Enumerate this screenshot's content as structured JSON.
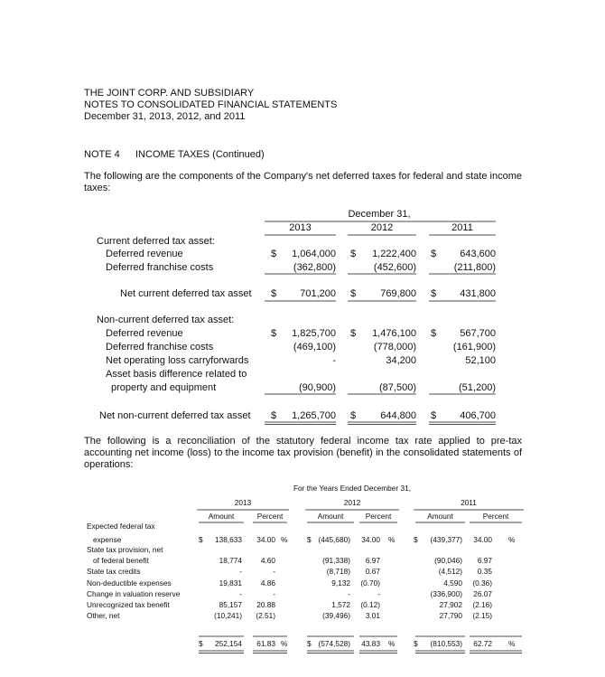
{
  "header": {
    "lines": [
      "THE JOINT CORP. AND SUBSIDIARY",
      "NOTES TO CONSOLIDATED FINANCIAL STATEMENTS",
      "December 31, 2013, 2012, and 2011"
    ]
  },
  "note": {
    "number": "NOTE 4",
    "title": "INCOME TAXES (Continued)"
  },
  "paragraphs": [
    "The following are the components of the Company's net deferred taxes for federal and state income taxes:",
    "The following is a reconciliation of the statutory federal income tax rate applied to pre-tax accounting net income (loss) to the income tax provision (benefit) in the consolidated statements of operations:"
  ],
  "table1": {
    "group_header": "December 31,",
    "years": [
      "2013",
      "2012",
      "2011"
    ],
    "rows": [
      {
        "label": "Current deferred tax asset:"
      },
      {
        "label": "Deferred revenue",
        "cells": [
          "$",
          "1,064,000",
          "$",
          "1,222,400",
          "$",
          "643,600"
        ]
      },
      {
        "label": "Deferred franchise costs",
        "cells": [
          null,
          "(362,800)",
          null,
          "(452,600)",
          null,
          "(211,800)"
        ]
      },
      {
        "label": "Net current deferred tax asset",
        "cells": [
          "$",
          "701,200",
          "$",
          "769,800",
          "$",
          "431,800"
        ]
      },
      {
        "label": "Non-current deferred tax asset:"
      },
      {
        "label": "Deferred revenue",
        "cells": [
          "$",
          "1,825,700",
          "$",
          "1,476,100",
          "$",
          "567,700"
        ]
      },
      {
        "label": "Deferred franchise costs",
        "cells": [
          null,
          "(469,100)",
          null,
          "(778,000)",
          null,
          "(161,900)"
        ]
      },
      {
        "label": "Net operating loss carryforwards",
        "cells": [
          null,
          "-",
          null,
          "34,200",
          null,
          "52,100"
        ]
      },
      {
        "label": "Asset basis difference related to"
      },
      {
        "label": "property and equipment",
        "cells": [
          null,
          "(90,900)",
          null,
          "(87,500)",
          null,
          "(51,200)"
        ]
      },
      {
        "label": "Net non-current deferred tax asset",
        "cells": [
          "$",
          "1,265,700",
          "$",
          "644,800",
          "$",
          "406,700"
        ]
      }
    ]
  },
  "table2": {
    "group_header": "For the Years Ended December 31,",
    "years": [
      "2013",
      "2012",
      "2011"
    ],
    "subheaders": [
      "Amount",
      "Percent",
      "Amount",
      "Percent",
      "Amount",
      "Percent"
    ],
    "rows": [
      {
        "label": "Expected federal tax"
      },
      {
        "label": "expense",
        "cells": [
          "$",
          "138,633",
          "34.00",
          "%",
          "$",
          "(445,680)",
          "34.00",
          "%",
          "$",
          "(439,377)",
          "34.00",
          "%"
        ]
      },
      {
        "label": "State tax provision, net"
      },
      {
        "label": "of federal benefit",
        "cells": [
          null,
          "18,774",
          "4.60",
          null,
          null,
          "(91,338)",
          "6.97",
          null,
          null,
          "(90,046)",
          "6.97",
          null
        ]
      },
      {
        "label": "State tax credits",
        "cells": [
          null,
          "-",
          "-",
          null,
          null,
          "(8,718)",
          "0.67",
          null,
          null,
          "(4,512)",
          "0.35",
          null
        ]
      },
      {
        "label": "Non-deductible expenses",
        "cells": [
          null,
          "19,831",
          "4.86",
          null,
          null,
          "9,132",
          "(0.70)",
          null,
          null,
          "4,590",
          "(0.36)",
          null
        ]
      },
      {
        "label": "Change in valuation reserve",
        "cells": [
          null,
          "-",
          "-",
          null,
          null,
          "-",
          "-",
          null,
          null,
          "(336,900)",
          "26.07",
          null
        ]
      },
      {
        "label": "Unrecognized tax benefit",
        "cells": [
          null,
          "85,157",
          "20.88",
          null,
          null,
          "1,572",
          "(0.12)",
          null,
          null,
          "27,902",
          "(2.16)",
          null
        ]
      },
      {
        "label": "Other, net",
        "cells": [
          null,
          "(10,241)",
          "(2.51)",
          null,
          null,
          "(39,496)",
          "3.01",
          null,
          null,
          "27,790",
          "(2.15)",
          null
        ]
      },
      {
        "label": null,
        "cells": [
          "$",
          "252,154",
          "61.83",
          "%",
          "$",
          "(574,528)",
          "43.83",
          "%",
          "$",
          "(810,553)",
          "62.72",
          "%"
        ]
      }
    ]
  }
}
